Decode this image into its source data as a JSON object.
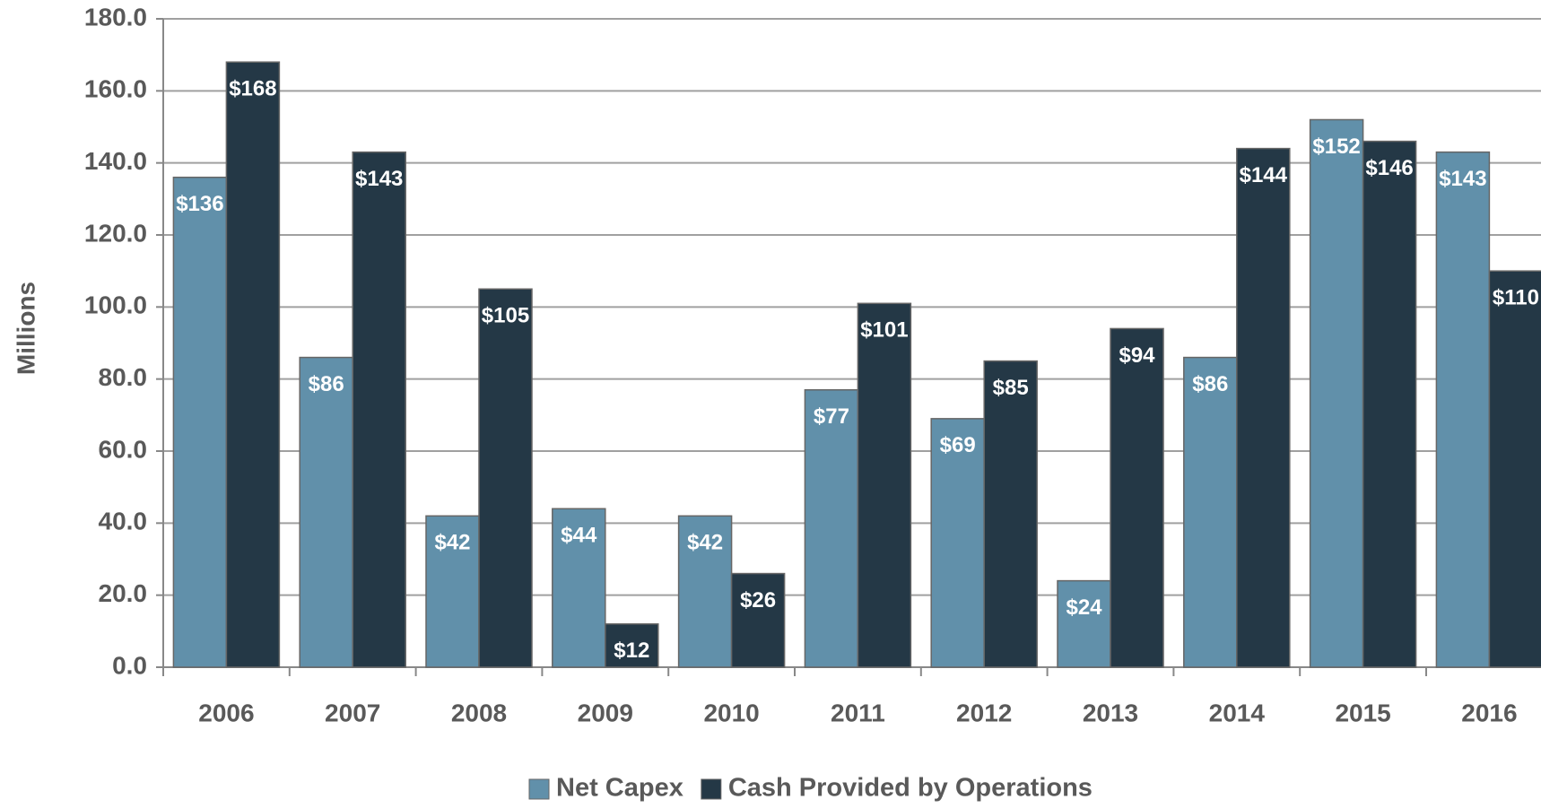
{
  "chart_data": {
    "type": "bar",
    "y_label": "Millions",
    "categories": [
      "2006",
      "2007",
      "2008",
      "2009",
      "2010",
      "2011",
      "2012",
      "2013",
      "2014",
      "2015",
      "2016"
    ],
    "series": [
      {
        "name": "Net Capex",
        "color": "#6190aa",
        "values": [
          136,
          86,
          42,
          44,
          42,
          77,
          69,
          24,
          86,
          152,
          143
        ],
        "value_labels": [
          "$136",
          "$86",
          "$42",
          "$44",
          "$42",
          "$77",
          "$69",
          "$24",
          "$86",
          "$152",
          "$143"
        ]
      },
      {
        "name": "Cash Provided by Operations",
        "color": "#243846",
        "values": [
          168,
          143,
          105,
          12,
          26,
          101,
          85,
          94,
          144,
          146,
          110
        ],
        "value_labels": [
          "$168",
          "$143",
          "$105",
          "$12",
          "$26",
          "$101",
          "$85",
          "$94",
          "$144",
          "$146",
          "$110"
        ]
      }
    ],
    "ylim": [
      0,
      180
    ],
    "yticks": [
      {
        "value": 0,
        "label": "0.0"
      },
      {
        "value": 20,
        "label": "20.0"
      },
      {
        "value": 40,
        "label": "40.0"
      },
      {
        "value": 60,
        "label": "60.0"
      },
      {
        "value": 80,
        "label": "80.0"
      },
      {
        "value": 100,
        "label": "100.0"
      },
      {
        "value": 120,
        "label": "120.0"
      },
      {
        "value": 140,
        "label": "140.0"
      },
      {
        "value": 160,
        "label": "160.0"
      },
      {
        "value": 180,
        "label": "180.0"
      }
    ],
    "grid": true,
    "legend": "bottom"
  }
}
